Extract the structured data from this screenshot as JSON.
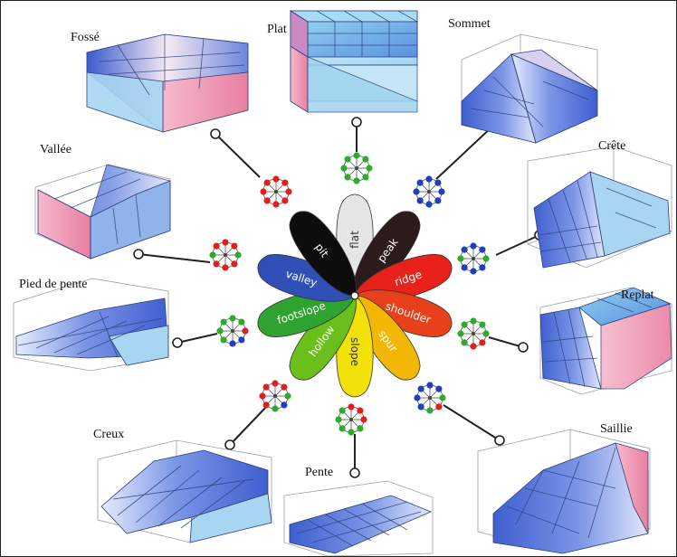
{
  "center_labels": [
    "flat",
    "peak",
    "ridge",
    "shoulder",
    "spur",
    "slope",
    "hollow",
    "footslope",
    "valley",
    "pit"
  ],
  "petal_colors": [
    "#e6e6e6",
    "#2b1b1b",
    "#e8211b",
    "#e8401a",
    "#f2b705",
    "#f2e20a",
    "#6bbf1a",
    "#2fa32f",
    "#3050b8",
    "#0d0d0d"
  ],
  "petal_text_colors": [
    "#333333",
    "#ffffff",
    "#ffffff",
    "#ffffff",
    "#ffffff",
    "#333333",
    "#ffffff",
    "#ffffff",
    "#ffffff",
    "#ffffff"
  ],
  "landform_names": [
    "Plat",
    "Sommet",
    "Crête",
    "Replat",
    "Saillie",
    "Pente",
    "Creux",
    "Pied de pente",
    "Vallée",
    "Fossé"
  ],
  "pattern_colors": {
    "red": "#e02020",
    "green": "#2eaa2e",
    "blue": "#1f3fbf"
  },
  "palette": {
    "surface_blue": "#5a78d8",
    "surface_light": "#a9d8f2",
    "wall_pink": "#f0a0b8",
    "grid": "#2b3f7a"
  }
}
